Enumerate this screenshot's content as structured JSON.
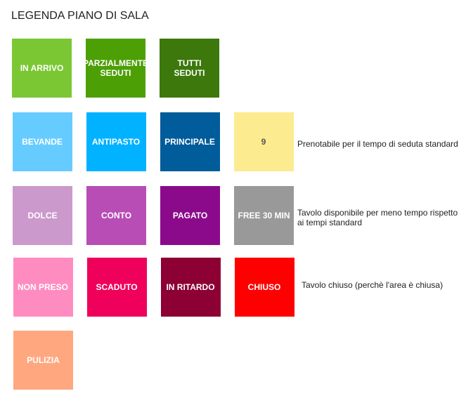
{
  "title": "LEGENDA PIANO DI SALA",
  "rows": [
    {
      "tiles": [
        {
          "label": "IN ARRIVO",
          "color": "#7ac733",
          "text_color": "#ffffff"
        },
        {
          "label": "PARZIALMENTE SEDUTI",
          "color": "#4d9f06",
          "text_color": "#ffffff"
        },
        {
          "label": "TUTTI SEDUTI",
          "color": "#3c780c",
          "text_color": "#ffffff"
        }
      ]
    },
    {
      "tiles": [
        {
          "label": "BEVANDE",
          "color": "#66ccff",
          "text_color": "#ffffff"
        },
        {
          "label": "ANTIPASTO",
          "color": "#00b2ff",
          "text_color": "#ffffff"
        },
        {
          "label": "PRINCIPALE",
          "color": "#005c9a",
          "text_color": "#ffffff"
        },
        {
          "label": "9",
          "color": "#fdeb8f",
          "text_color": "#555555"
        }
      ],
      "description": "Prenotabile per il tempo di seduta standard"
    },
    {
      "tiles": [
        {
          "label": "DOLCE",
          "color": "#cc99cc",
          "text_color": "#ffffff"
        },
        {
          "label": "CONTO",
          "color": "#b84db5",
          "text_color": "#ffffff"
        },
        {
          "label": "PAGATO",
          "color": "#8b0a8b",
          "text_color": "#ffffff"
        },
        {
          "label": "FREE 30 MIN",
          "color": "#999999",
          "text_color": "#ffffff"
        }
      ],
      "description": "Tavolo disponibile per meno tempo rispetto ai tempi standard"
    },
    {
      "tiles": [
        {
          "label": "NON PRESO",
          "color": "#ff8cc0",
          "text_color": "#ffffff"
        },
        {
          "label": "SCADUTO",
          "color": "#ef005a",
          "text_color": "#ffffff"
        },
        {
          "label": "IN RITARDO",
          "color": "#8c0033",
          "text_color": "#ffffff"
        },
        {
          "label": "CHIUSO",
          "color": "#ff0000",
          "text_color": "#ffffff"
        }
      ],
      "description": "Tavolo chiuso (perchè l'area è chiusa)"
    },
    {
      "tiles": [
        {
          "label": "PULIZIA",
          "color": "#ffa880",
          "text_color": "#ffffff"
        }
      ]
    }
  ]
}
